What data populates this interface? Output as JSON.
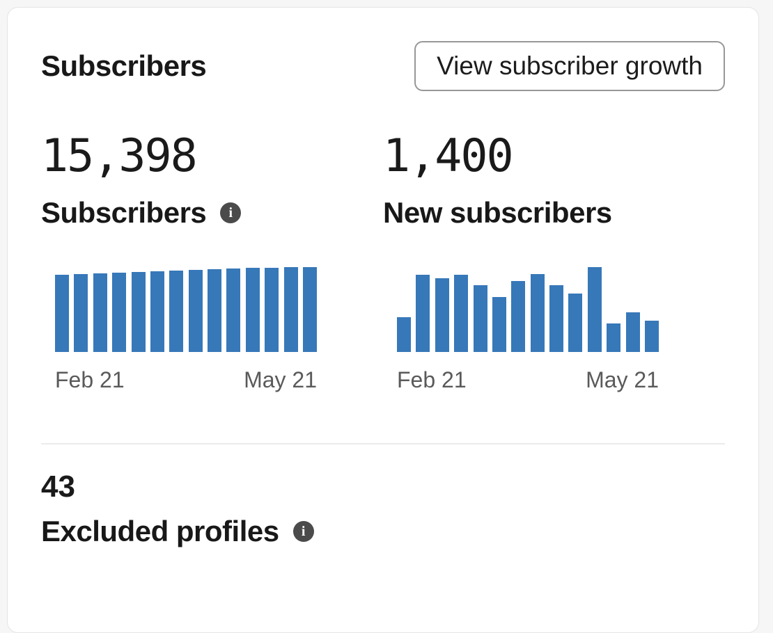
{
  "card": {
    "title": "Subscribers",
    "button_label": "View subscriber growth"
  },
  "stats": [
    {
      "value": "15,398",
      "label": "Subscribers"
    },
    {
      "value": "1,400",
      "label": "New subscribers"
    }
  ],
  "excluded": {
    "value": "43",
    "label": "Excluded profiles"
  },
  "icons": {
    "info_glyph": "i"
  },
  "colors": {
    "bar_blue": "#3778B9",
    "axis_label": "#5a5a5a",
    "info_icon_bg": "#4b4b4b"
  },
  "chart_data": [
    {
      "id": "total-subscribers",
      "type": "bar",
      "title": "Subscribers",
      "x_tick_labels": [
        "Feb 21",
        "May 21"
      ],
      "values": [
        14056,
        14184,
        14307,
        14435,
        14546,
        14637,
        14755,
        14884,
        14995,
        15092,
        15233,
        15280,
        15346,
        15398
      ],
      "ylim": [
        0,
        15398
      ],
      "grid": false,
      "legend": false,
      "bar_color": "#3778B9"
    },
    {
      "id": "new-subscribers",
      "type": "bar",
      "title": "New subscribers",
      "x_tick_labels": [
        "Feb 21",
        "May 21"
      ],
      "values": [
        58,
        128,
        123,
        128,
        111,
        91,
        118,
        129,
        111,
        97,
        141,
        47,
        66,
        52
      ],
      "ylim": [
        0,
        141
      ],
      "grid": false,
      "legend": false,
      "bar_color": "#3778B9"
    }
  ]
}
